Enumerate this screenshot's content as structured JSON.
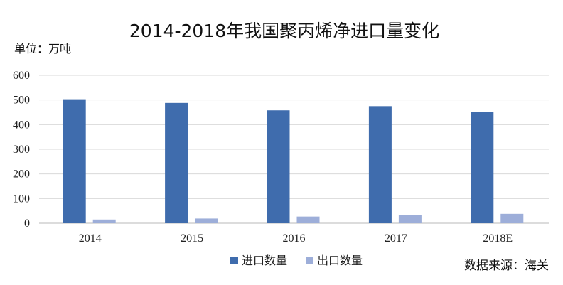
{
  "chart_data": {
    "type": "bar",
    "title": "2014-2018年我国聚丙烯净进口量变化",
    "unit_label": "单位：万吨",
    "categories": [
      "2014",
      "2015",
      "2016",
      "2017",
      "2018E"
    ],
    "series": [
      {
        "name": "进口数量",
        "values": [
          503,
          488,
          458,
          475,
          452
        ],
        "color": "#3F6CAD"
      },
      {
        "name": "出口数量",
        "values": [
          15,
          19,
          27,
          32,
          38
        ],
        "color": "#9DAED9"
      }
    ],
    "ylim": [
      0,
      600
    ],
    "yticks": [
      "0",
      "100",
      "200",
      "300",
      "400",
      "500",
      "600"
    ],
    "grid": true,
    "legend_position": "bottom-center",
    "source_note": "数据来源：海关"
  }
}
